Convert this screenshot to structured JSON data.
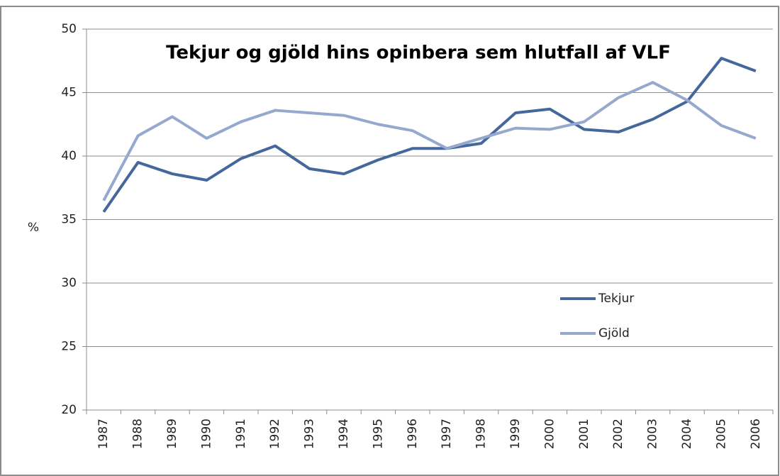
{
  "chart_data": {
    "type": "line",
    "title": "Tekjur og gjöld hins opinbera sem hlutfall af VLF",
    "y_label": "%",
    "categories": [
      "1987",
      "1988",
      "1989",
      "1990",
      "1991",
      "1992",
      "1993",
      "1994",
      "1995",
      "1996",
      "1997",
      "1998",
      "1999",
      "2000",
      "2001",
      "2002",
      "2003",
      "2004",
      "2005",
      "2006"
    ],
    "series": [
      {
        "name": "Tekjur",
        "color": "#44689b",
        "values": [
          35.6,
          39.5,
          38.6,
          38.1,
          39.8,
          40.8,
          39.0,
          38.6,
          39.7,
          40.6,
          40.6,
          41.0,
          43.4,
          43.7,
          42.1,
          41.9,
          42.9,
          44.3,
          47.7,
          46.7
        ]
      },
      {
        "name": "Gjöld",
        "color": "#95a9cf",
        "values": [
          36.5,
          41.6,
          43.1,
          41.4,
          42.7,
          43.6,
          43.4,
          43.2,
          42.5,
          42.0,
          40.6,
          41.4,
          42.2,
          42.1,
          42.7,
          44.6,
          45.8,
          44.4,
          42.4,
          41.4
        ]
      }
    ],
    "ylim": [
      20,
      50
    ],
    "yticks": [
      20,
      25,
      30,
      35,
      40,
      45,
      50
    ],
    "grid": true
  }
}
